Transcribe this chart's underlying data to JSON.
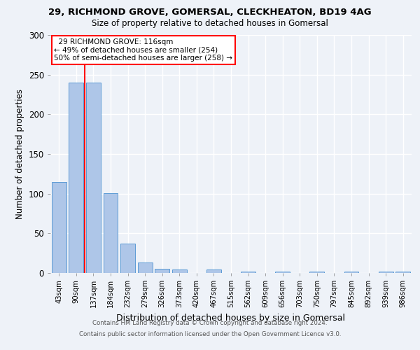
{
  "title1": "29, RICHMOND GROVE, GOMERSAL, CLECKHEATON, BD19 4AG",
  "title2": "Size of property relative to detached houses in Gomersal",
  "xlabel": "Distribution of detached houses by size in Gomersal",
  "ylabel": "Number of detached properties",
  "categories": [
    "43sqm",
    "90sqm",
    "137sqm",
    "184sqm",
    "232sqm",
    "279sqm",
    "326sqm",
    "373sqm",
    "420sqm",
    "467sqm",
    "515sqm",
    "562sqm",
    "609sqm",
    "656sqm",
    "703sqm",
    "750sqm",
    "797sqm",
    "845sqm",
    "892sqm",
    "939sqm",
    "986sqm"
  ],
  "values": [
    115,
    240,
    240,
    101,
    37,
    13,
    5,
    4,
    0,
    4,
    0,
    2,
    0,
    2,
    0,
    2,
    0,
    2,
    0,
    2,
    2
  ],
  "bar_color": "#aec6e8",
  "bar_edge_color": "#5b9bd5",
  "vline_x": 1.5,
  "vline_color": "red",
  "annotation_text": "  29 RICHMOND GROVE: 116sqm  \n← 49% of detached houses are smaller (254)\n50% of semi-detached houses are larger (258) →",
  "annotation_box_color": "white",
  "annotation_box_edge_color": "red",
  "footer1": "Contains HM Land Registry data © Crown copyright and database right 2024.",
  "footer2": "Contains public sector information licensed under the Open Government Licence v3.0.",
  "ylim": [
    0,
    300
  ],
  "background_color": "#eef2f8",
  "grid_color": "white"
}
